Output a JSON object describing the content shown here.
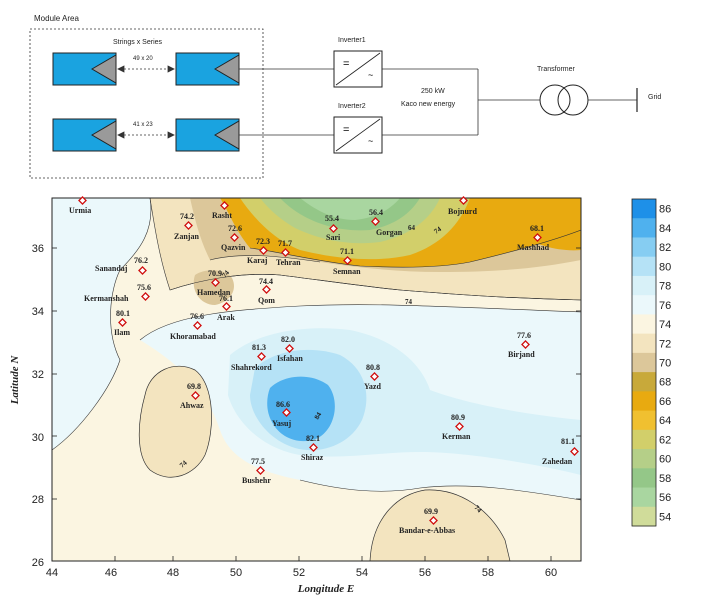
{
  "diagram": {
    "module_area": "Module Area",
    "strings_title": "Strings x Series",
    "string1": "49 x 20",
    "string2": "41 x 23",
    "inverter1": "Inverter1",
    "inverter2": "Inverter2",
    "inverter_symbol_dc": "=",
    "inverter_symbol_ac": "~",
    "power": "250 kW",
    "manufacturer": "Kaco new energy",
    "transformer": "Transformer",
    "grid": "Grid"
  },
  "map": {
    "xlabel": "Longitude E",
    "ylabel": "Latitude N",
    "x_ticks": [
      "44",
      "46",
      "48",
      "50",
      "52",
      "54",
      "56",
      "58",
      "60"
    ],
    "y_ticks": [
      "26",
      "28",
      "30",
      "32",
      "34",
      "36"
    ],
    "colorbar_ticks": [
      "86",
      "84",
      "82",
      "80",
      "78",
      "76",
      "74",
      "72",
      "70",
      "68",
      "66",
      "64",
      "62",
      "60",
      "58",
      "56",
      "54"
    ],
    "colorbar_colors": [
      "#1e90e8",
      "#4fb1ee",
      "#86cdf2",
      "#b5e2f6",
      "#d8f1f8",
      "#ebf8fb",
      "#fbf5e1",
      "#f3e4bf",
      "#dcc79a",
      "#c8a93a",
      "#e8aa10",
      "#f0c030",
      "#d2cf6a",
      "#b5cf88",
      "#94c788",
      "#a9d6a0",
      "#d0dc9a"
    ],
    "contour_labels": [
      "74",
      "74",
      "74",
      "64",
      "84",
      "74",
      "74"
    ],
    "cities": [
      {
        "name": "Urmia",
        "value": ""
      },
      {
        "name": "Rasht",
        "value": ""
      },
      {
        "name": "Bojnurd",
        "value": ""
      },
      {
        "name": "Zanjan",
        "value": "74.2"
      },
      {
        "name": "Qazvin",
        "value": "72.6"
      },
      {
        "name": "Karaj",
        "value": "72.3"
      },
      {
        "name": "Tehran",
        "value": "71.7"
      },
      {
        "name": "Sari",
        "value": "55.4"
      },
      {
        "name": "Gorgan",
        "value": "56.4"
      },
      {
        "name": "Semnan",
        "value": "71.1"
      },
      {
        "name": "Mashhad",
        "value": "68.1"
      },
      {
        "name": "Sanandaj",
        "value": "76.2"
      },
      {
        "name": "Hamedan",
        "value": "70.9"
      },
      {
        "name": "Kermanshah",
        "value": "75.6"
      },
      {
        "name": "Qom",
        "value": "74.4"
      },
      {
        "name": "Arak",
        "value": "76.1"
      },
      {
        "name": "Ilam",
        "value": "80.1"
      },
      {
        "name": "Khoramabad",
        "value": "76.6"
      },
      {
        "name": "Isfahan",
        "value": "82.0"
      },
      {
        "name": "Shahrekord",
        "value": "81.3"
      },
      {
        "name": "Birjand",
        "value": "77.6"
      },
      {
        "name": "Yazd",
        "value": "80.8"
      },
      {
        "name": "Ahwaz",
        "value": "69.8"
      },
      {
        "name": "Yasuj",
        "value": "86.6"
      },
      {
        "name": "Shiraz",
        "value": "82.1"
      },
      {
        "name": "Kerman",
        "value": "80.9"
      },
      {
        "name": "Zahedan",
        "value": "81.1"
      },
      {
        "name": "Bushehr",
        "value": "77.5"
      },
      {
        "name": "Bandar-e-Abbas",
        "value": "69.9"
      }
    ]
  }
}
